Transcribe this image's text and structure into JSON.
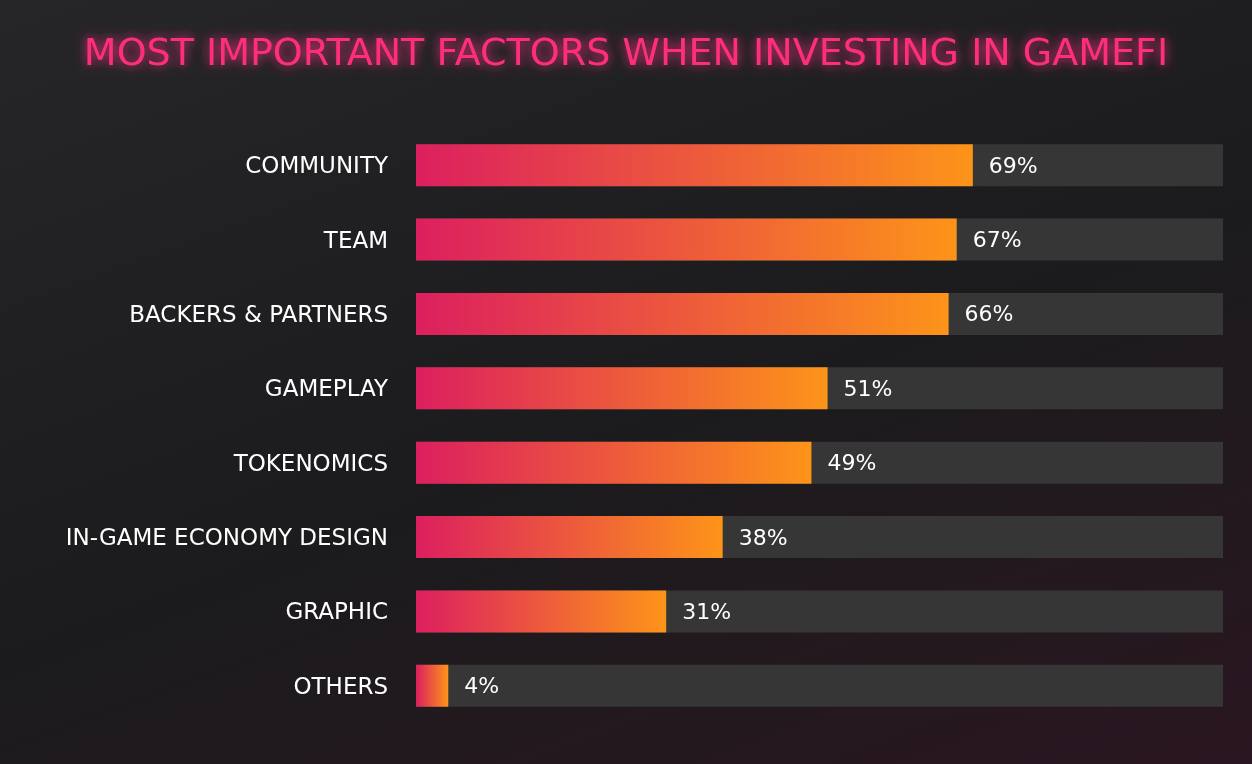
{
  "chart_data": {
    "type": "bar",
    "orientation": "horizontal",
    "title": "MOST IMPORTANT FACTORS WHEN INVESTING IN GAMEFI",
    "categories": [
      "COMMUNITY",
      "TEAM",
      "BACKERS & PARTNERS",
      "GAMEPLAY",
      "TOKENOMICS",
      "IN-GAME ECONOMY DESIGN",
      "GRAPHIC",
      "OTHERS"
    ],
    "values": [
      69,
      67,
      66,
      51,
      49,
      38,
      31,
      4
    ],
    "value_labels": [
      "69%",
      "67%",
      "66%",
      "51%",
      "49%",
      "38%",
      "31%",
      "4%"
    ],
    "color": "#fd9419",
    "xlim": [
      0,
      100
    ],
    "tick_labels": "y"
  }
}
